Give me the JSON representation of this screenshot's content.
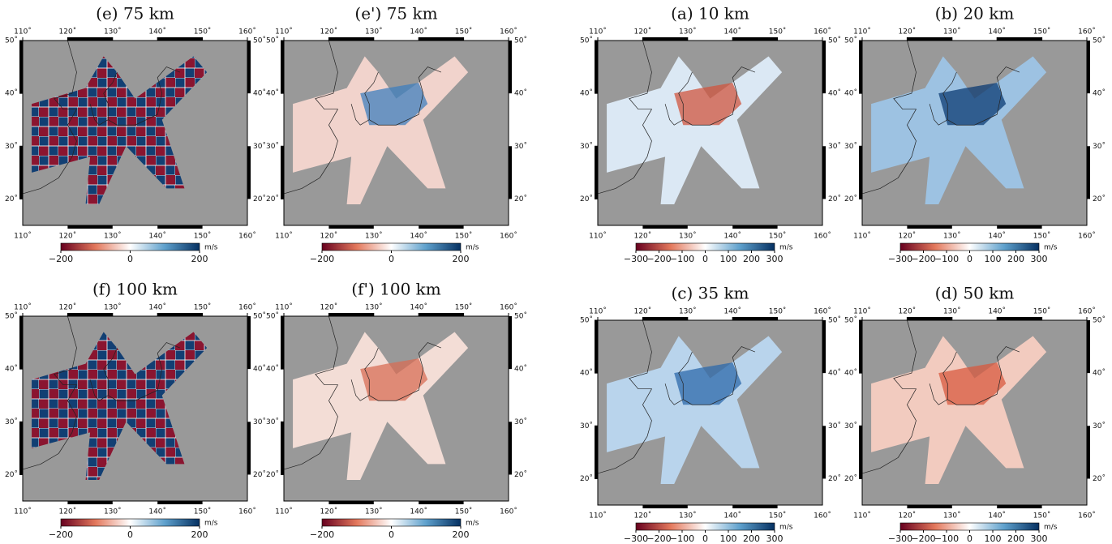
{
  "map_axes": {
    "lonlim": [
      110,
      160
    ],
    "latlim": [
      15,
      50
    ],
    "lon_ticks": [
      {
        "value": 110,
        "label": "110˚"
      },
      {
        "value": 120,
        "label": "120˚"
      },
      {
        "value": 130,
        "label": "130˚"
      },
      {
        "value": 140,
        "label": "140˚"
      },
      {
        "value": 150,
        "label": "150˚"
      },
      {
        "value": 160,
        "label": "160˚"
      }
    ],
    "lat_ticks": [
      {
        "value": 20,
        "label": "20˚"
      },
      {
        "value": 30,
        "label": "30˚"
      },
      {
        "value": 40,
        "label": "40˚"
      },
      {
        "value": 50,
        "label": "50˚"
      }
    ]
  },
  "panels": [
    {
      "title": "(e)  75  km",
      "colorbar": {
        "lim": [
          -200,
          200
        ],
        "ticks": [
          {
            "value": -200,
            "label": "−200"
          },
          0,
          200
        ],
        "unit": "m/s"
      }
    },
    {
      "title": "(e')  75  km",
      "colorbar": {
        "lim": [
          -200,
          200
        ],
        "ticks": [
          {
            "value": -200,
            "label": "−200"
          },
          0,
          200
        ],
        "unit": "m/s"
      }
    },
    {
      "title": "(a)  10  km",
      "colorbar": {
        "lim": [
          -300,
          300
        ],
        "ticks": [
          {
            "value": -300,
            "label": "−300"
          },
          {
            "value": -200,
            "label": "−200"
          },
          {
            "value": -100,
            "label": "−100"
          },
          0,
          100,
          200,
          300
        ],
        "unit": "m/s"
      }
    },
    {
      "title": "(b)  20  km",
      "colorbar": {
        "lim": [
          -300,
          300
        ],
        "ticks": [
          {
            "value": -300,
            "label": "−300"
          },
          {
            "value": -200,
            "label": "−200"
          },
          {
            "value": -100,
            "label": "−100"
          },
          0,
          100,
          200,
          300
        ],
        "unit": "m/s"
      }
    },
    {
      "title": "(f)  100  km",
      "colorbar": {
        "lim": [
          -200,
          200
        ],
        "ticks": [
          {
            "value": -200,
            "label": "−200"
          },
          0,
          200
        ],
        "unit": "m/s"
      }
    },
    {
      "title": "(f')  100  km",
      "colorbar": {
        "lim": [
          -200,
          200
        ],
        "ticks": [
          {
            "value": -200,
            "label": "−200"
          },
          0,
          200
        ],
        "unit": "m/s"
      }
    },
    {
      "title": "(c)  35  km",
      "colorbar": {
        "lim": [
          -300,
          300
        ],
        "ticks": [
          {
            "value": -300,
            "label": "−300"
          },
          {
            "value": -200,
            "label": "−200"
          },
          {
            "value": -100,
            "label": "−100"
          },
          0,
          100,
          200,
          300
        ],
        "unit": "m/s"
      }
    },
    {
      "title": "(d)  50  km",
      "colorbar": {
        "lim": [
          -300,
          300
        ],
        "ticks": [
          {
            "value": -300,
            "label": "−300"
          },
          {
            "value": -200,
            "label": "−200"
          },
          {
            "value": -100,
            "label": "−100"
          },
          0,
          100,
          200,
          300
        ],
        "unit": "m/s"
      }
    }
  ]
}
